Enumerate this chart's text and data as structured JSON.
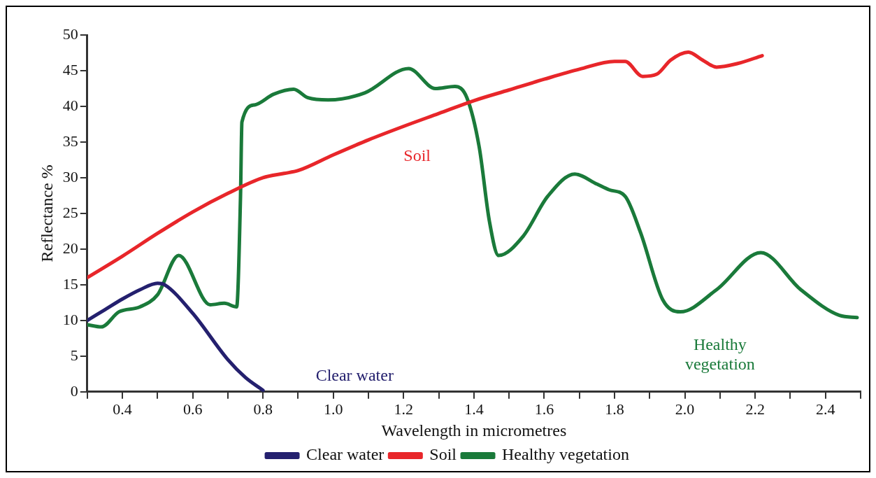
{
  "chart_data": {
    "type": "line",
    "xlabel": "Wavelength in micrometres",
    "ylabel": "Reflectance %",
    "xlim": [
      0.3,
      2.5
    ],
    "xticks": [
      {
        "value": 0.3,
        "label": null
      },
      0.4,
      {
        "value": 0.5,
        "label": null
      },
      0.6,
      {
        "value": 0.7,
        "label": null
      },
      0.8,
      {
        "value": 0.9,
        "label": null
      },
      {
        "value": 1.0,
        "label": "1.0"
      },
      {
        "value": 1.1,
        "label": null
      },
      1.2,
      {
        "value": 1.3,
        "label": null
      },
      1.4,
      {
        "value": 1.5,
        "label": null
      },
      1.6,
      {
        "value": 1.7,
        "label": null
      },
      1.8,
      {
        "value": 1.9,
        "label": null
      },
      {
        "value": 2.0,
        "label": "2.0"
      },
      {
        "value": 2.1,
        "label": null
      },
      2.2,
      {
        "value": 2.3,
        "label": null
      },
      2.4,
      {
        "value": 2.5,
        "label": null
      }
    ],
    "ylim": [
      0,
      50
    ],
    "yticks": [
      0,
      5,
      10,
      15,
      20,
      25,
      30,
      35,
      40,
      45,
      50
    ],
    "grid": false,
    "legend": "bottom",
    "marker": "none",
    "line_style": "solid",
    "series": [
      {
        "name": "Clear water",
        "color": "#24206e",
        "x": [
          0.3,
          0.35,
          0.4,
          0.45,
          0.5,
          0.52,
          0.6,
          0.7,
          0.75,
          0.8
        ],
        "values": [
          10,
          11.5,
          13,
          14.3,
          15.2,
          15,
          11,
          4.5,
          2,
          0.2
        ]
      },
      {
        "name": "Soil",
        "color": "#e8262a",
        "x": [
          0.3,
          0.4,
          0.5,
          0.6,
          0.7,
          0.8,
          0.86,
          0.9,
          1.0,
          1.1,
          1.2,
          1.3,
          1.4,
          1.5,
          1.6,
          1.7,
          1.8,
          1.83,
          1.88,
          1.92,
          1.96,
          2.01,
          2.05,
          2.09,
          2.15,
          2.22
        ],
        "values": [
          16,
          19,
          22.2,
          25.2,
          27.8,
          30,
          30.6,
          31,
          33.2,
          35.3,
          37.2,
          39,
          40.8,
          42.3,
          43.8,
          45.2,
          46.3,
          46.3,
          44.2,
          44.5,
          46.5,
          47.6,
          46.5,
          45.5,
          46,
          47.1
        ]
      },
      {
        "name": "Healthy vegetation",
        "color": "#1a7a3a",
        "x": [
          0.3,
          0.34,
          0.39,
          0.45,
          0.5,
          0.56,
          0.65,
          0.69,
          0.725,
          0.736,
          0.74,
          0.776,
          0.83,
          0.887,
          0.928,
          0.985,
          1.09,
          1.214,
          1.29,
          1.346,
          1.38,
          1.415,
          1.444,
          1.47,
          1.54,
          1.61,
          1.687,
          1.75,
          1.785,
          1.83,
          1.874,
          1.937,
          1.987,
          2.09,
          2.216,
          2.33,
          2.44,
          2.49
        ],
        "values": [
          9.4,
          9.1,
          11.2,
          11.9,
          13.6,
          19.1,
          12.2,
          12.4,
          11.9,
          27.4,
          37.8,
          40.2,
          41.7,
          42.4,
          41.2,
          40.9,
          41.9,
          45.3,
          42.5,
          42.8,
          41.2,
          34.3,
          23.9,
          19.1,
          21.8,
          27.4,
          30.5,
          29.1,
          28.3,
          27.4,
          22.3,
          12.9,
          11.2,
          14.3,
          19.5,
          14.3,
          10.7,
          10.4
        ]
      }
    ]
  }
}
